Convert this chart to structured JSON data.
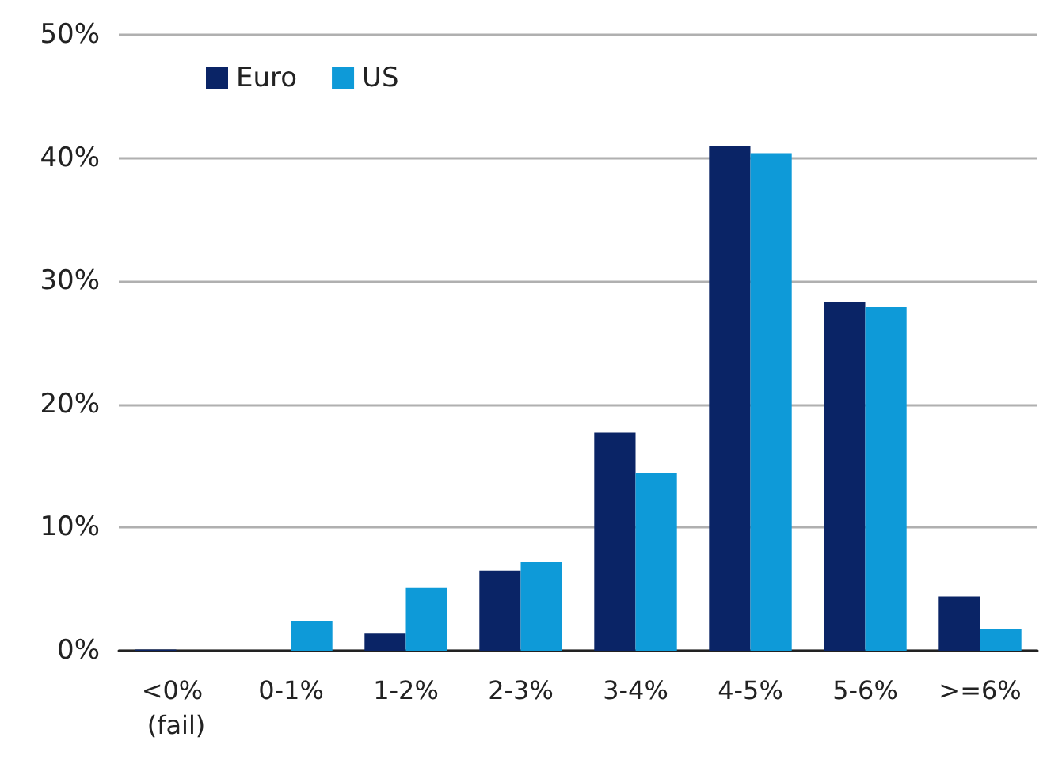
{
  "chart_data": {
    "type": "bar",
    "categories": [
      "<0% (fail)",
      "0-1%",
      "1-2%",
      "2-3%",
      "3-4%",
      "4-5%",
      "5-6%",
      ">=6%"
    ],
    "series": [
      {
        "name": "Euro",
        "color": "#0a2466",
        "values": [
          0.1,
          0,
          1.4,
          6.5,
          17.7,
          41.0,
          28.3,
          4.4
        ]
      },
      {
        "name": "US",
        "color": "#0e9ad8",
        "values": [
          0,
          2.4,
          5.1,
          7.2,
          14.4,
          40.4,
          27.9,
          1.8
        ]
      }
    ],
    "ylim": [
      0,
      50
    ],
    "yticks": [
      {
        "value": 0,
        "label": "0%"
      },
      {
        "value": 10,
        "label": "10%"
      },
      {
        "value": 20,
        "label": "20%"
      },
      {
        "value": 30,
        "label": "30%"
      },
      {
        "value": 40,
        "label": "40%"
      },
      {
        "value": 50,
        "label": "50%"
      }
    ],
    "grid": "y",
    "legend": "top left"
  }
}
